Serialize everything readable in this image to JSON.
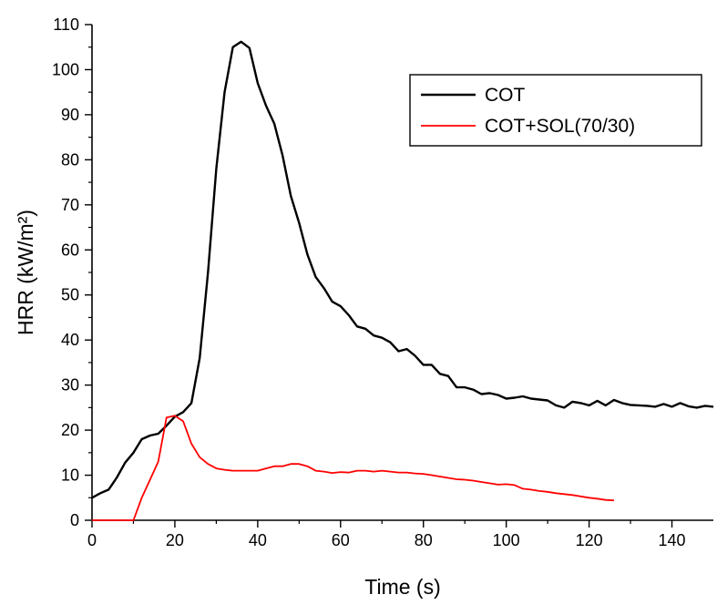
{
  "chart_data": {
    "type": "line",
    "title": "",
    "xlabel": "Time (s)",
    "ylabel": "HRR (kW/m²)",
    "xlim": [
      0,
      150
    ],
    "ylim": [
      0,
      110
    ],
    "xticks": [
      "0",
      "20",
      "40",
      "60",
      "80",
      "100",
      "120",
      "140"
    ],
    "yticks": [
      "0",
      "10",
      "20",
      "30",
      "40",
      "50",
      "60",
      "70",
      "80",
      "90",
      "100",
      "110"
    ],
    "grid": false,
    "legend_position": "top-right",
    "series": [
      {
        "name": "COT",
        "color": "#000000",
        "x": [
          0,
          2,
          4,
          6,
          8,
          10,
          12,
          14,
          16,
          18,
          20,
          22,
          24,
          26,
          28,
          30,
          32,
          34,
          36,
          38,
          40,
          42,
          44,
          46,
          48,
          50,
          52,
          54,
          56,
          58,
          60,
          62,
          64,
          66,
          68,
          70,
          72,
          74,
          76,
          78,
          80,
          82,
          84,
          86,
          88,
          90,
          92,
          94,
          96,
          98,
          100,
          102,
          104,
          106,
          108,
          110,
          112,
          114,
          116,
          118,
          120,
          122,
          124,
          126,
          128,
          130,
          132,
          134,
          136,
          138,
          140,
          142,
          144,
          146,
          148,
          150
        ],
        "values": [
          5.0,
          6.0,
          6.8,
          9.5,
          12.8,
          15.0,
          18.0,
          18.8,
          19.2,
          21.0,
          23.0,
          24.0,
          26.0,
          36.0,
          55.0,
          78.0,
          95.0,
          105.0,
          106.2,
          104.8,
          97.0,
          92.0,
          88.0,
          81.0,
          72.0,
          66.0,
          59.0,
          54.0,
          51.5,
          48.5,
          47.5,
          45.5,
          43.0,
          42.5,
          41.0,
          40.5,
          39.5,
          37.5,
          38.0,
          36.5,
          34.5,
          34.5,
          32.5,
          32.0,
          29.5,
          29.5,
          29.0,
          28.0,
          28.2,
          27.8,
          27.0,
          27.2,
          27.5,
          27.0,
          26.8,
          26.6,
          25.5,
          25.0,
          26.3,
          26.0,
          25.5,
          26.5,
          25.5,
          26.7,
          26.0,
          25.6,
          25.5,
          25.4,
          25.2,
          25.8,
          25.2,
          26.0,
          25.3,
          25.0,
          25.4,
          25.2
        ]
      },
      {
        "name": "COT+SOL(70/30)",
        "color": "#ff0000",
        "x": [
          0,
          2,
          4,
          6,
          8,
          10,
          12,
          14,
          16,
          18,
          20,
          22,
          24,
          26,
          28,
          30,
          32,
          34,
          36,
          38,
          40,
          42,
          44,
          46,
          48,
          50,
          52,
          54,
          56,
          58,
          60,
          62,
          64,
          66,
          68,
          70,
          72,
          74,
          76,
          78,
          80,
          82,
          84,
          86,
          88,
          90,
          92,
          94,
          96,
          98,
          100,
          102,
          104,
          106,
          108,
          110,
          112,
          114,
          116,
          118,
          120,
          122,
          124,
          126
        ],
        "values": [
          0,
          0,
          0,
          0,
          0,
          0,
          5.0,
          9.0,
          13.0,
          22.8,
          23.2,
          22.0,
          17.0,
          14.0,
          12.5,
          11.5,
          11.2,
          11.0,
          11.0,
          11.0,
          11.0,
          11.5,
          12.0,
          12.0,
          12.5,
          12.5,
          12.0,
          11.0,
          10.8,
          10.5,
          10.7,
          10.6,
          11.0,
          11.0,
          10.8,
          11.0,
          10.8,
          10.6,
          10.6,
          10.4,
          10.3,
          10.0,
          9.7,
          9.4,
          9.1,
          9.0,
          8.8,
          8.5,
          8.2,
          7.9,
          8.0,
          7.8,
          7.0,
          6.8,
          6.5,
          6.3,
          6.0,
          5.8,
          5.6,
          5.3,
          5.0,
          4.8,
          4.5,
          4.4
        ]
      }
    ]
  }
}
